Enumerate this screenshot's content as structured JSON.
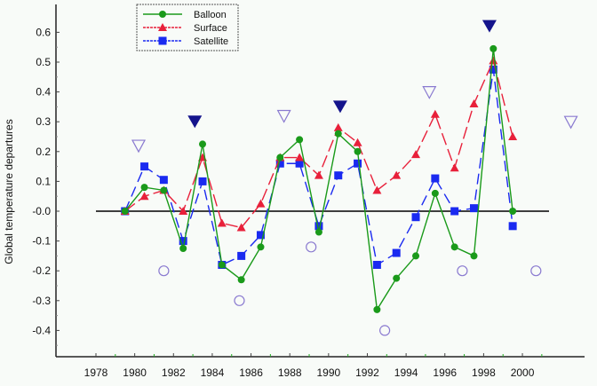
{
  "chart_data": {
    "type": "line",
    "title": "",
    "xlabel": "",
    "ylabel": "Global temperature departures",
    "xlim": [
      1976.5,
      2002.5
    ],
    "ylim": [
      -0.49,
      0.68
    ],
    "x_ticks": [
      "1978",
      "1980",
      "1982",
      "1984",
      "1986",
      "1988",
      "1990",
      "1992",
      "1994",
      "1996",
      "1998",
      "2000"
    ],
    "y_ticks": [
      "0.6",
      "0.5",
      "0.4",
      "0.3",
      "0.2",
      "0.1",
      "-0.0",
      "-0.1",
      "-0.2",
      "-0.3",
      "-0.4"
    ],
    "y_tick_values": [
      0.6,
      0.5,
      0.4,
      0.3,
      0.2,
      0.1,
      0,
      -0.1,
      -0.2,
      -0.3,
      -0.4
    ],
    "legend_position": "top-left",
    "x": [
      1979.5,
      1980.5,
      1981.5,
      1982.5,
      1983.5,
      1984.5,
      1985.5,
      1986.5,
      1987.5,
      1988.5,
      1989.5,
      1990.5,
      1991.5,
      1992.5,
      1993.5,
      1994.5,
      1995.5,
      1996.5,
      1997.5,
      1998.5,
      1999.5
    ],
    "series": [
      {
        "name": "Balloon",
        "color": "#1a9a1a",
        "marker": "circle",
        "dash": "",
        "values": [
          0.0,
          0.08,
          0.07,
          -0.125,
          0.225,
          -0.18,
          -0.23,
          -0.12,
          0.18,
          0.24,
          -0.07,
          0.26,
          0.2,
          -0.33,
          -0.225,
          -0.15,
          0.06,
          -0.12,
          -0.15,
          0.545,
          0.0
        ]
      },
      {
        "name": "Surface",
        "color": "#e8203a",
        "marker": "triangle",
        "dash": "14 5",
        "values": [
          0.0,
          0.05,
          0.07,
          0.0,
          0.18,
          -0.04,
          -0.055,
          0.025,
          0.18,
          0.18,
          0.12,
          0.28,
          0.23,
          0.07,
          0.12,
          0.19,
          0.325,
          0.145,
          0.36,
          0.505,
          0.25
        ]
      },
      {
        "name": "Satellite",
        "color": "#1a2af0",
        "marker": "square",
        "dash": "12 6",
        "values": [
          0.0,
          0.15,
          0.105,
          -0.1,
          0.1,
          -0.18,
          -0.15,
          -0.08,
          0.16,
          0.16,
          -0.05,
          0.12,
          0.16,
          -0.18,
          -0.14,
          -0.02,
          0.11,
          0.0,
          0.01,
          0.475,
          -0.05
        ]
      }
    ],
    "annotations": {
      "filled_triangles": [
        [
          1983.1,
          0.3
        ],
        [
          1990.6,
          0.35
        ],
        [
          1998.3,
          0.62
        ]
      ],
      "open_triangles": [
        [
          1980.2,
          0.22
        ],
        [
          1987.7,
          0.32
        ],
        [
          1995.2,
          0.4
        ],
        [
          2002.5,
          0.3
        ]
      ],
      "open_circles": [
        [
          1981.5,
          -0.2
        ],
        [
          1985.4,
          -0.3
        ],
        [
          1989.1,
          -0.12
        ],
        [
          1992.9,
          -0.4
        ],
        [
          1996.9,
          -0.2
        ],
        [
          2000.7,
          -0.2
        ]
      ]
    },
    "reference_line": 0
  }
}
